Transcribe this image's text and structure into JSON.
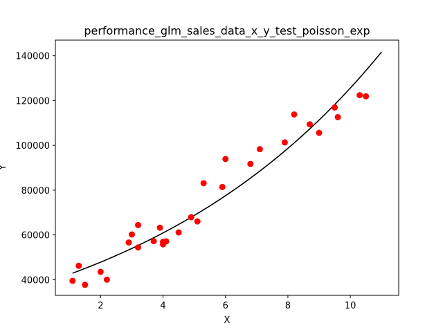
{
  "chart_data": {
    "type": "scatter",
    "title": "performance_glm_sales_data_x_y_test_poisson_exp",
    "xlabel": "X",
    "ylabel": "Y",
    "xlim": [
      0.55,
      11.55
    ],
    "ylim": [
      33000,
      147000
    ],
    "x_ticks": [
      2,
      4,
      6,
      8,
      10
    ],
    "y_ticks": [
      40000,
      60000,
      80000,
      100000,
      120000,
      140000
    ],
    "grid": false,
    "colors": {
      "points": "#ff0000",
      "fit": "#000000"
    },
    "points": [
      {
        "x": 1.1,
        "y": 39500
      },
      {
        "x": 1.3,
        "y": 46200
      },
      {
        "x": 1.5,
        "y": 37700
      },
      {
        "x": 2.0,
        "y": 43500
      },
      {
        "x": 2.2,
        "y": 40000
      },
      {
        "x": 2.9,
        "y": 56600
      },
      {
        "x": 3.0,
        "y": 60200
      },
      {
        "x": 3.2,
        "y": 54400
      },
      {
        "x": 3.2,
        "y": 64400
      },
      {
        "x": 3.7,
        "y": 57200
      },
      {
        "x": 3.9,
        "y": 63200
      },
      {
        "x": 4.0,
        "y": 55800
      },
      {
        "x": 4.0,
        "y": 56900
      },
      {
        "x": 4.1,
        "y": 57100
      },
      {
        "x": 4.5,
        "y": 61100
      },
      {
        "x": 4.9,
        "y": 67900
      },
      {
        "x": 5.1,
        "y": 66000
      },
      {
        "x": 5.3,
        "y": 83100
      },
      {
        "x": 5.9,
        "y": 81400
      },
      {
        "x": 6.0,
        "y": 93900
      },
      {
        "x": 6.8,
        "y": 91700
      },
      {
        "x": 7.1,
        "y": 98300
      },
      {
        "x": 7.9,
        "y": 101300
      },
      {
        "x": 8.2,
        "y": 113800
      },
      {
        "x": 8.7,
        "y": 109400
      },
      {
        "x": 9.0,
        "y": 105600
      },
      {
        "x": 9.5,
        "y": 116900
      },
      {
        "x": 9.6,
        "y": 112600
      },
      {
        "x": 10.3,
        "y": 122400
      },
      {
        "x": 10.5,
        "y": 121900
      }
    ],
    "fit": {
      "type": "line",
      "x_range": [
        1.1,
        11.0
      ],
      "model": "poisson_exp",
      "y_at_start": 42900,
      "y_at_end": 141700
    }
  }
}
